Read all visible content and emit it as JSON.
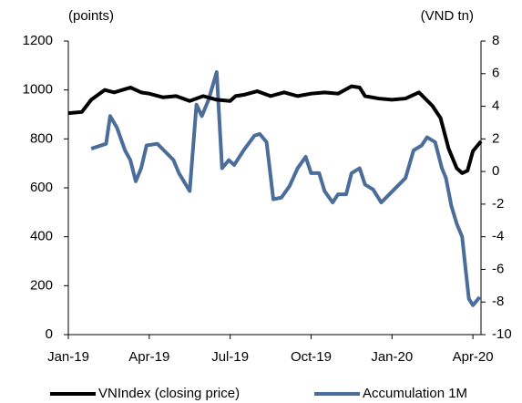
{
  "chart_data": {
    "type": "line",
    "y_label": "(points)",
    "y2_label": "(VND tn)",
    "xlim": [
      0,
      15.3
    ],
    "xticks": [
      {
        "value": 0,
        "label": "Jan-19"
      },
      {
        "value": 3,
        "label": "Apr-19"
      },
      {
        "value": 6,
        "label": "Jul-19"
      },
      {
        "value": 9,
        "label": "Oct-19"
      },
      {
        "value": 12,
        "label": "Jan-20"
      },
      {
        "value": 15,
        "label": "Apr-20"
      }
    ],
    "ylim": [
      0,
      1200
    ],
    "yticks": [
      0,
      200,
      400,
      600,
      800,
      1000,
      1200
    ],
    "y2lim": [
      -10,
      8
    ],
    "y2ticks": [
      -10,
      -8,
      -6,
      -4,
      -2,
      0,
      2,
      4,
      6,
      8
    ],
    "series": [
      {
        "name": "VNIndex (closing price)",
        "color": "#000000",
        "x": [
          0,
          0.5,
          0.85,
          1.35,
          1.7,
          2,
          2.3,
          2.7,
          3,
          3.5,
          4,
          4.5,
          5,
          5.5,
          6,
          6.2,
          6.5,
          7,
          7.5,
          8,
          8.5,
          9,
          9.5,
          10,
          10.5,
          10.8,
          11,
          11.5,
          12,
          12.5,
          13,
          13.5,
          13.8,
          14.1,
          14.4,
          14.6,
          14.8,
          15,
          15.3
        ],
        "values": [
          905,
          910,
          960,
          1000,
          990,
          1000,
          1010,
          990,
          985,
          970,
          975,
          955,
          975,
          960,
          955,
          975,
          980,
          995,
          975,
          990,
          975,
          985,
          990,
          985,
          1015,
          1010,
          975,
          965,
          960,
          965,
          990,
          935,
          885,
          760,
          680,
          660,
          670,
          750,
          790
        ]
      },
      {
        "name": "Accumulation 1M",
        "color": "#4a6d9a",
        "axis": "y2",
        "x": [
          0.85,
          1.4,
          1.55,
          1.8,
          2.1,
          2.3,
          2.5,
          2.7,
          2.9,
          3.3,
          3.6,
          3.9,
          4.1,
          4.5,
          4.75,
          4.95,
          5.2,
          5.5,
          5.7,
          5.95,
          6.15,
          6.5,
          6.9,
          7.1,
          7.35,
          7.6,
          7.9,
          8.2,
          8.5,
          8.8,
          9.0,
          9.3,
          9.5,
          9.8,
          10.0,
          10.3,
          10.5,
          10.8,
          11.0,
          11.3,
          11.6,
          11.9,
          12.2,
          12.5,
          12.8,
          13.1,
          13.3,
          13.6,
          13.85,
          14.0,
          14.2,
          14.4,
          14.6,
          14.75,
          14.85,
          15.0,
          15.25
        ],
        "values": [
          1.4,
          1.7,
          3.4,
          2.7,
          1.3,
          0.7,
          -0.6,
          0.2,
          1.6,
          1.7,
          1.2,
          0.7,
          -0.1,
          -1.2,
          4.1,
          3.4,
          4.4,
          6.1,
          0.2,
          0.7,
          0.4,
          1.3,
          2.2,
          2.3,
          1.8,
          -1.7,
          -1.6,
          -0.9,
          0.2,
          0.9,
          -0.1,
          -0.1,
          -1.2,
          -1.9,
          -1.4,
          -1.4,
          -0.1,
          0.2,
          -0.8,
          -1.1,
          -1.9,
          -1.4,
          -0.9,
          -0.4,
          1.3,
          1.6,
          2.1,
          1.8,
          0.2,
          -0.4,
          -2.1,
          -3.2,
          -4.0,
          -6.3,
          -7.8,
          -8.2,
          -7.7
        ]
      }
    ]
  }
}
